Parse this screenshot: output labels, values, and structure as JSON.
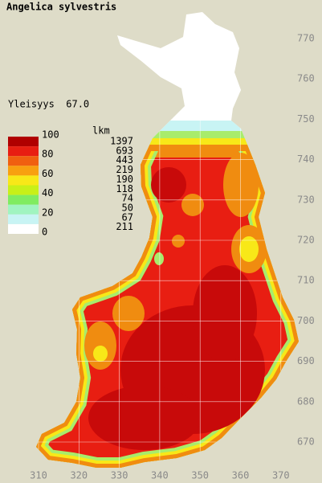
{
  "title": "Angelica sylvestris",
  "frequency": "Yleisyys  67.0",
  "legend": {
    "scale": [
      "100",
      "80",
      "60",
      "40",
      "20",
      "0"
    ],
    "count_header": "lkm",
    "counts": [
      1397,
      693,
      443,
      219,
      190,
      118,
      74,
      50,
      67,
      211
    ]
  },
  "axes": {
    "northing": [
      770,
      760,
      750,
      740,
      730,
      720,
      710,
      700,
      690,
      680,
      670
    ],
    "easting": [
      310,
      320,
      330,
      340,
      350,
      360,
      370
    ]
  }
}
